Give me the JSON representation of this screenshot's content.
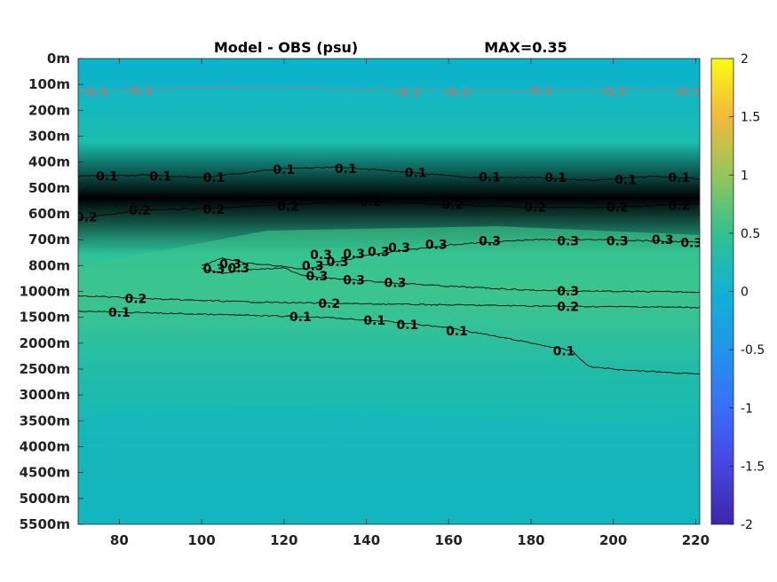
{
  "chart_data": {
    "type": "heatmap",
    "title": "Model - OBS (psu)",
    "max_label": "MAX=0.35",
    "x_ticks": [
      "80",
      "100",
      "120",
      "140",
      "160",
      "180",
      "200",
      "220"
    ],
    "x_tick_values": [
      80,
      100,
      120,
      140,
      160,
      180,
      200,
      220
    ],
    "xlim": [
      70,
      221
    ],
    "y_ticks": [
      "0m",
      "100m",
      "200m",
      "300m",
      "400m",
      "500m",
      "600m",
      "700m",
      "800m",
      "1000m",
      "1500m",
      "2000m",
      "2500m",
      "3000m",
      "3500m",
      "4000m",
      "4500m",
      "5000m",
      "5500m"
    ],
    "colorbar": {
      "ticks": [
        "2",
        "1.5",
        "1",
        "0.5",
        "0",
        "-0.5",
        "-1",
        "-1.5",
        "-2"
      ],
      "tick_values": [
        2,
        1.5,
        1,
        0.5,
        0,
        -0.5,
        -1,
        -1.5,
        -2
      ],
      "range": [
        -2,
        2
      ],
      "colormap": "parula"
    },
    "background_colors": {
      "surface": "#0fb4c8",
      "shallow": "#18bcb0",
      "mid": "#2dc09e",
      "core": "#3cc48e",
      "deep": "#1db9b1",
      "bottom": "#10b6c0"
    },
    "contours": [
      {
        "level": "-0.1",
        "color": "#888888",
        "x": [
          70,
          90,
          110,
          130,
          150,
          170,
          190,
          210,
          221
        ],
        "depth": [
          125,
          118,
          110,
          115,
          122,
          125,
          120,
          118,
          120
        ]
      },
      {
        "level": "0.1",
        "color": "#000000",
        "x": [
          70,
          85,
          100,
          120,
          135,
          150,
          165,
          180,
          195,
          210,
          221
        ],
        "depth": [
          455,
          450,
          460,
          425,
          420,
          440,
          460,
          460,
          470,
          455,
          465
        ]
      },
      {
        "level": "0.2",
        "color": "#000000",
        "x": [
          70,
          85,
          100,
          120,
          140,
          160,
          180,
          200,
          221
        ],
        "depth": [
          620,
          585,
          580,
          565,
          550,
          565,
          575,
          575,
          560
        ]
      },
      {
        "level": "0.3",
        "color": "#000000",
        "x": [
          125,
          140,
          160,
          180,
          200,
          221
        ],
        "depth": [
          830,
          760,
          720,
          700,
          700,
          710
        ]
      },
      {
        "level": "0.3",
        "color": "#000000",
        "x": [
          125,
          140,
          160,
          180,
          200,
          221
        ],
        "depth": [
          880,
          920,
          960,
          990,
          1000,
          1010
        ]
      },
      {
        "level": "0.3",
        "color": "#000000",
        "x": [
          100,
          105,
          110,
          118,
          125
        ],
        "depth": [
          800,
          770,
          790,
          800,
          830
        ]
      },
      {
        "level": "0.3",
        "color": "#000000",
        "x": [
          100,
          105,
          112,
          120,
          125
        ],
        "depth": [
          820,
          860,
          830,
          820,
          880
        ]
      },
      {
        "level": "0.2",
        "color": "#000000",
        "x": [
          70,
          90,
          110,
          130,
          150,
          170,
          190,
          210,
          221
        ],
        "depth": [
          1080,
          1150,
          1200,
          1230,
          1250,
          1270,
          1290,
          1300,
          1310
        ]
      },
      {
        "level": "0.1",
        "color": "#000000",
        "x": [
          70,
          90,
          110,
          130,
          145,
          160,
          175,
          190,
          194,
          200,
          221
        ],
        "depth": [
          1380,
          1420,
          1460,
          1500,
          1580,
          1700,
          1920,
          2150,
          2450,
          2500,
          2600
        ]
      }
    ],
    "contour_labels": [
      {
        "text": "-0.1",
        "x": 74,
        "depth": 128,
        "color": "#888888"
      },
      {
        "text": "-0.1",
        "x": 85,
        "depth": 124,
        "color": "#888888"
      },
      {
        "text": "-0.1",
        "x": 150,
        "depth": 130,
        "color": "#888888"
      },
      {
        "text": "-0.1",
        "x": 162,
        "depth": 128,
        "color": "#888888"
      },
      {
        "text": "-0.1",
        "x": 182,
        "depth": 124,
        "color": "#888888"
      },
      {
        "text": "-0.1",
        "x": 200,
        "depth": 126,
        "color": "#888888"
      },
      {
        "text": "-0.1",
        "x": 218,
        "depth": 128,
        "color": "#888888"
      },
      {
        "text": "0.1",
        "x": 77,
        "depth": 455,
        "color": "#000000"
      },
      {
        "text": "0.1",
        "x": 90,
        "depth": 455,
        "color": "#000000"
      },
      {
        "text": "0.1",
        "x": 103,
        "depth": 460,
        "color": "#000000"
      },
      {
        "text": "0.1",
        "x": 120,
        "depth": 428,
        "color": "#000000"
      },
      {
        "text": "0.1",
        "x": 135,
        "depth": 425,
        "color": "#000000"
      },
      {
        "text": "0.1",
        "x": 152,
        "depth": 440,
        "color": "#000000"
      },
      {
        "text": "0.1",
        "x": 170,
        "depth": 458,
        "color": "#000000"
      },
      {
        "text": "0.1",
        "x": 186,
        "depth": 460,
        "color": "#000000"
      },
      {
        "text": "0.1",
        "x": 203,
        "depth": 468,
        "color": "#000000"
      },
      {
        "text": "0.1",
        "x": 216,
        "depth": 460,
        "color": "#000000"
      },
      {
        "text": "0.2",
        "x": 72,
        "depth": 612,
        "color": "#000000"
      },
      {
        "text": "0.2",
        "x": 85,
        "depth": 586,
        "color": "#000000"
      },
      {
        "text": "0.2",
        "x": 103,
        "depth": 582,
        "color": "#000000"
      },
      {
        "text": "0.2",
        "x": 121,
        "depth": 570,
        "color": "#000000"
      },
      {
        "text": "0.2",
        "x": 141,
        "depth": 552,
        "color": "#000000"
      },
      {
        "text": "0.2",
        "x": 161,
        "depth": 564,
        "color": "#000000"
      },
      {
        "text": "0.2",
        "x": 181,
        "depth": 574,
        "color": "#000000"
      },
      {
        "text": "0.2",
        "x": 201,
        "depth": 574,
        "color": "#000000"
      },
      {
        "text": "0.2",
        "x": 216,
        "depth": 568,
        "color": "#000000"
      },
      {
        "text": "0.3",
        "x": 107,
        "depth": 793,
        "color": "#000000"
      },
      {
        "text": "0.3",
        "x": 103,
        "depth": 825,
        "color": "#000000"
      },
      {
        "text": "0.3",
        "x": 109,
        "depth": 818,
        "color": "#000000"
      },
      {
        "text": "0.3",
        "x": 127,
        "depth": 800,
        "color": "#000000"
      },
      {
        "text": "0.3",
        "x": 129,
        "depth": 758,
        "color": "#000000"
      },
      {
        "text": "0.3",
        "x": 133,
        "depth": 785,
        "color": "#000000"
      },
      {
        "text": "0.3",
        "x": 137,
        "depth": 755,
        "color": "#000000"
      },
      {
        "text": "0.3",
        "x": 143,
        "depth": 745,
        "color": "#000000"
      },
      {
        "text": "0.3",
        "x": 148,
        "depth": 730,
        "color": "#000000"
      },
      {
        "text": "0.3",
        "x": 157,
        "depth": 718,
        "color": "#000000"
      },
      {
        "text": "0.3",
        "x": 170,
        "depth": 705,
        "color": "#000000"
      },
      {
        "text": "0.3",
        "x": 189,
        "depth": 705,
        "color": "#000000"
      },
      {
        "text": "0.3",
        "x": 201,
        "depth": 705,
        "color": "#000000"
      },
      {
        "text": "0.3",
        "x": 212,
        "depth": 700,
        "color": "#000000"
      },
      {
        "text": "0.3",
        "x": 219,
        "depth": 712,
        "color": "#000000"
      },
      {
        "text": "0.3",
        "x": 128,
        "depth": 880,
        "color": "#000000"
      },
      {
        "text": "0.3",
        "x": 137,
        "depth": 910,
        "color": "#000000"
      },
      {
        "text": "0.3",
        "x": 147,
        "depth": 930,
        "color": "#000000"
      },
      {
        "text": "0.3",
        "x": 189,
        "depth": 995,
        "color": "#000000"
      },
      {
        "text": "0.2",
        "x": 84,
        "depth": 1140,
        "color": "#000000"
      },
      {
        "text": "0.2",
        "x": 131,
        "depth": 1235,
        "color": "#000000"
      },
      {
        "text": "0.2",
        "x": 189,
        "depth": 1290,
        "color": "#000000"
      },
      {
        "text": "0.1",
        "x": 80,
        "depth": 1400,
        "color": "#000000"
      },
      {
        "text": "0.1",
        "x": 124,
        "depth": 1490,
        "color": "#000000"
      },
      {
        "text": "0.1",
        "x": 142,
        "depth": 1560,
        "color": "#000000"
      },
      {
        "text": "0.1",
        "x": 150,
        "depth": 1640,
        "color": "#000000"
      },
      {
        "text": "0.1",
        "x": 162,
        "depth": 1760,
        "color": "#000000"
      },
      {
        "text": "0.1",
        "x": 188,
        "depth": 2150,
        "color": "#000000"
      }
    ]
  }
}
